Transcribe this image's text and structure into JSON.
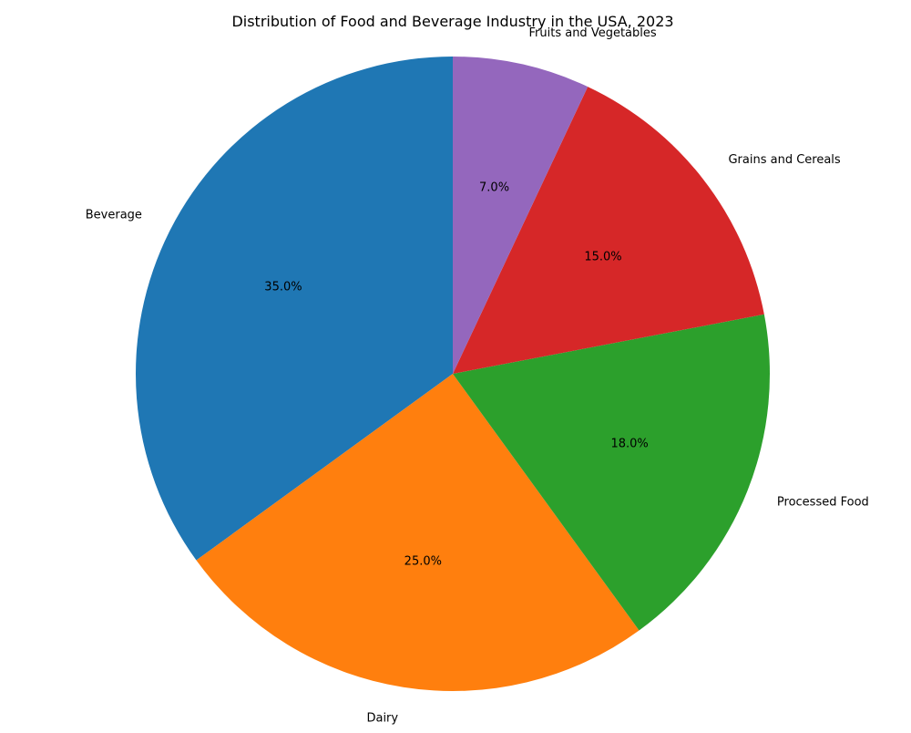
{
  "chart_data": {
    "type": "pie",
    "title": "Distribution of Food and Beverage Industry in the USA, 2023",
    "categories": [
      "Beverage",
      "Dairy",
      "Processed Food",
      "Grains and Cereals",
      "Fruits and Vegetables"
    ],
    "values": [
      35.0,
      25.0,
      18.0,
      15.0,
      7.0
    ],
    "percent_labels": [
      "35.0%",
      "25.0%",
      "18.0%",
      "15.0%",
      "7.0%"
    ],
    "colors": [
      "#1f77b4",
      "#ff7f0e",
      "#2ca02c",
      "#d62728",
      "#9467bd"
    ],
    "start_angle_deg": 90,
    "direction": "counterclockwise",
    "xlabel": "",
    "ylabel": "",
    "legend": "none"
  }
}
